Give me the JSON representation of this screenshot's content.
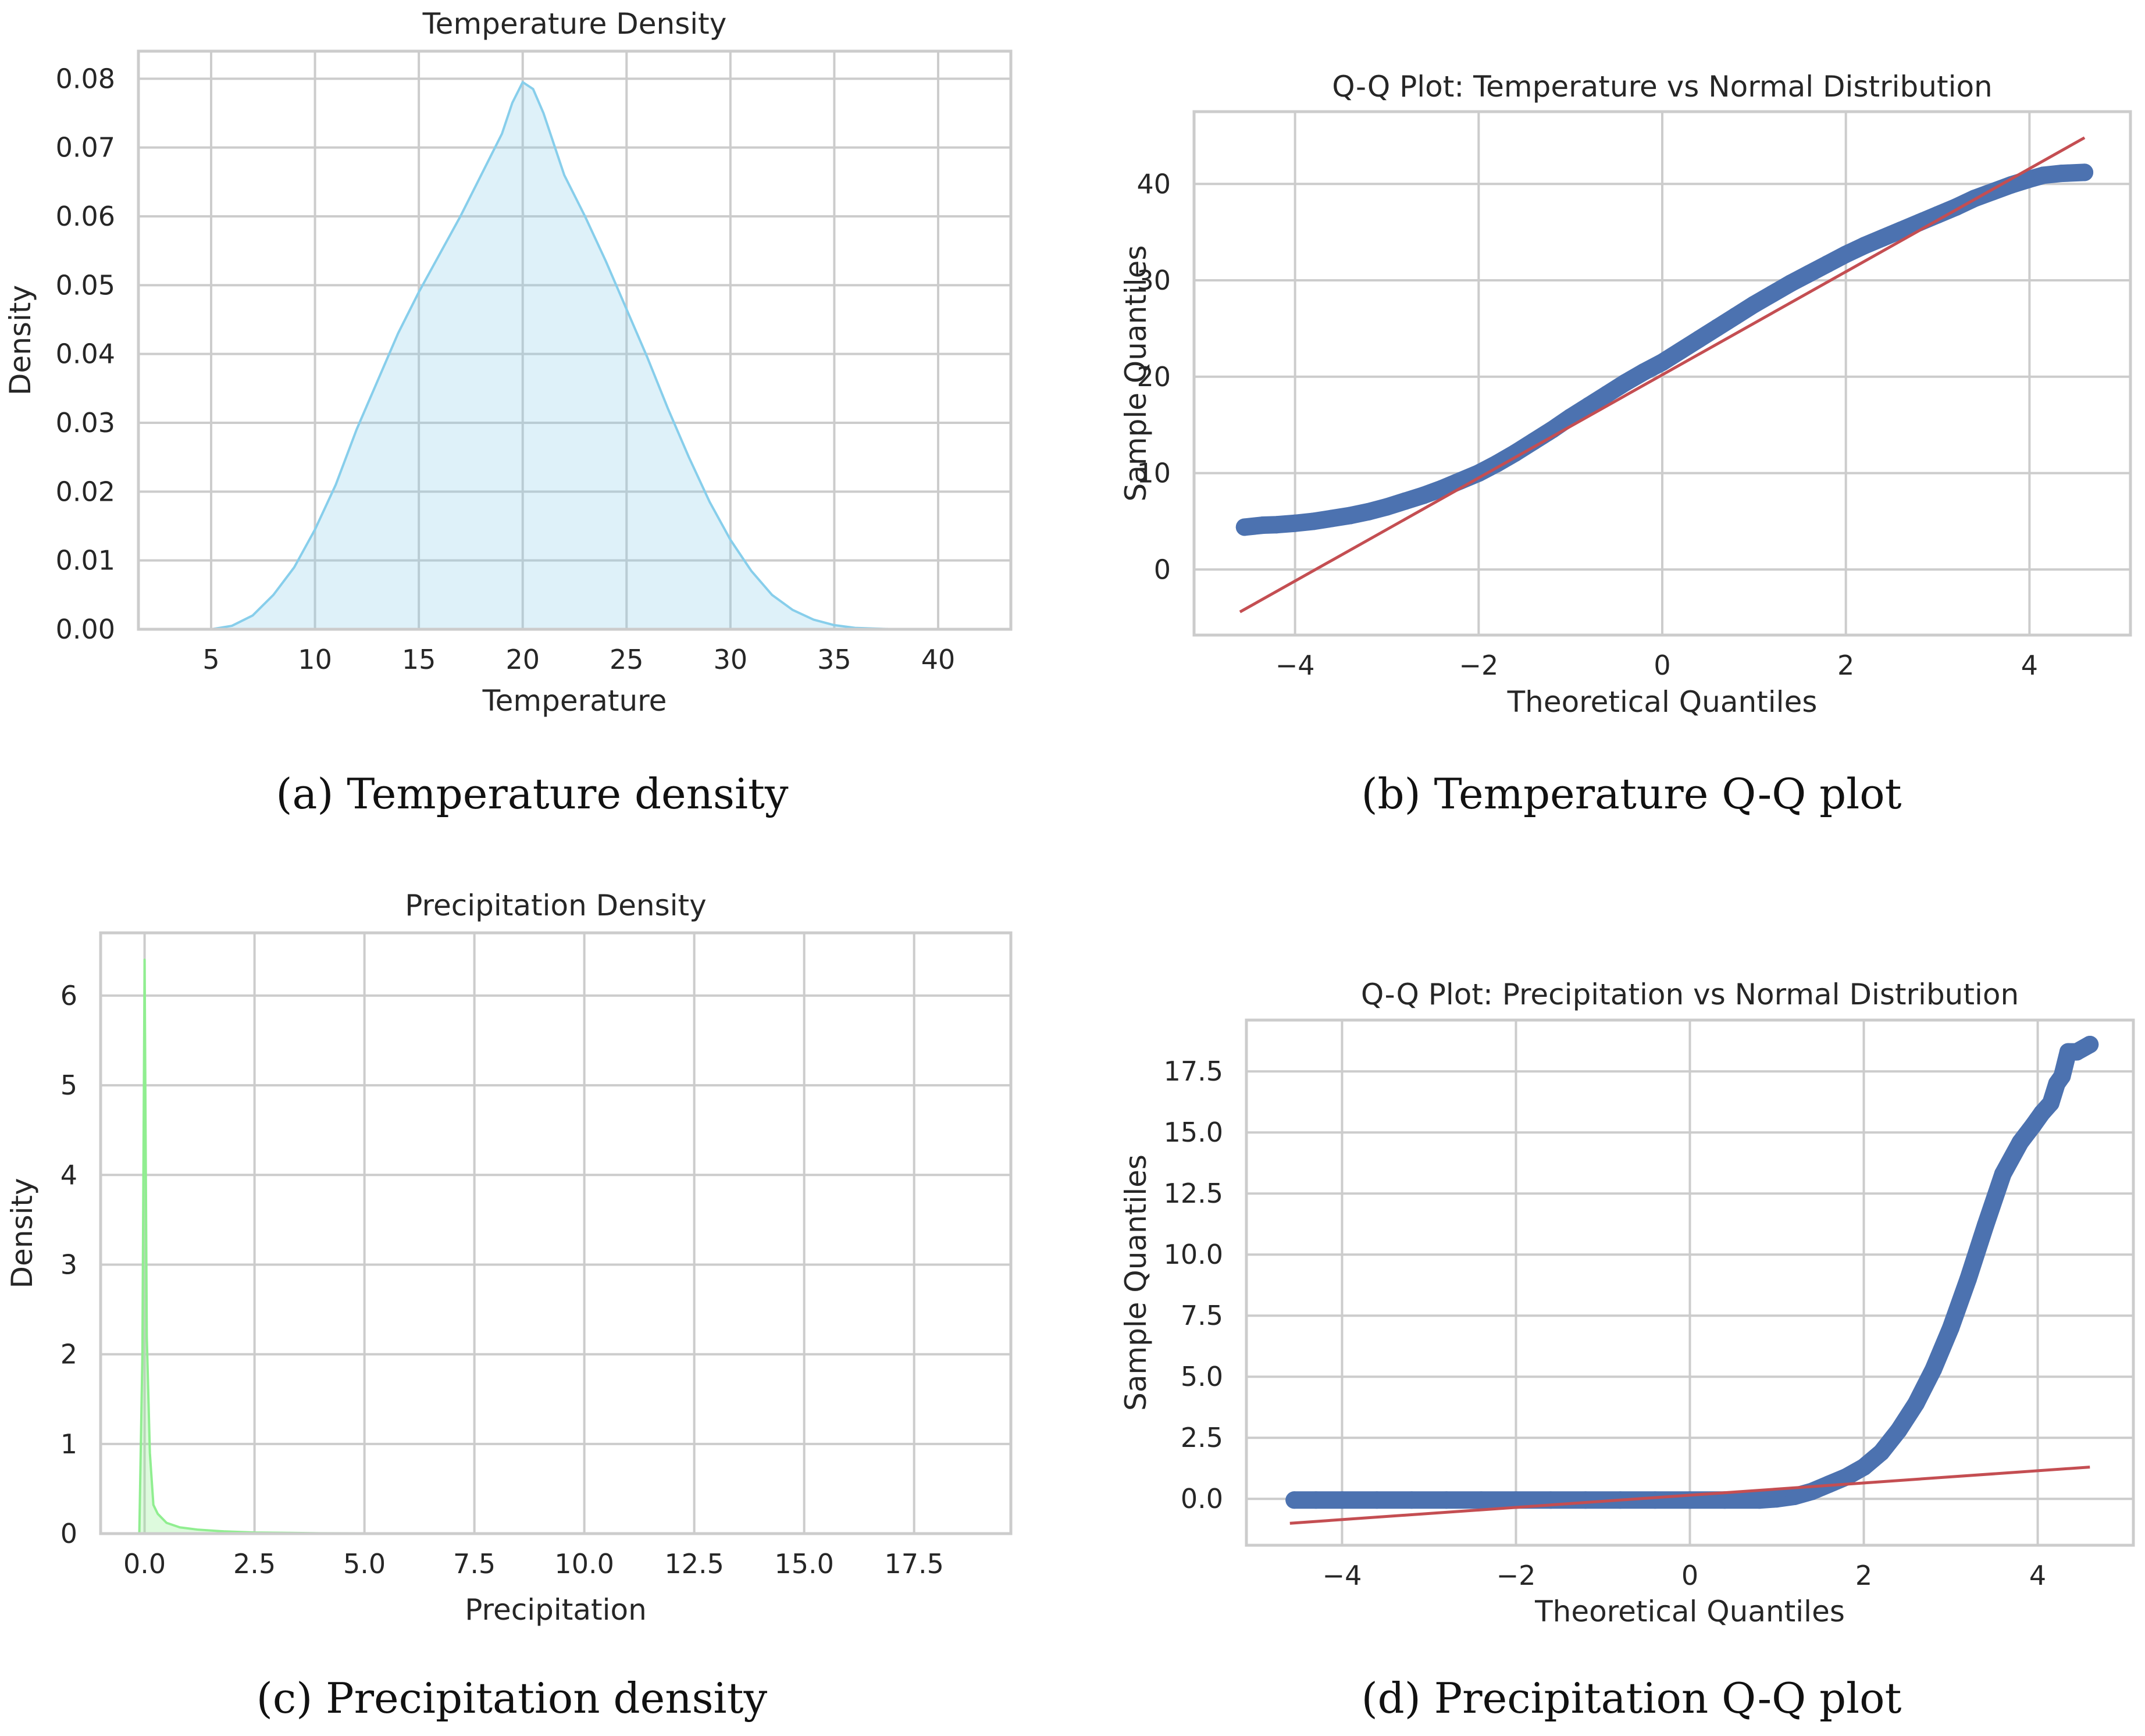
{
  "chart_data": [
    {
      "type": "area",
      "panel": "a",
      "title": "Temperature Density",
      "xlabel": "Temperature",
      "ylabel": "Density",
      "xlim": [
        1.5,
        43.5
      ],
      "ylim": [
        0,
        0.084
      ],
      "xticks": [
        5,
        10,
        15,
        20,
        25,
        30,
        35,
        40
      ],
      "yticks": [
        0.0,
        0.01,
        0.02,
        0.03,
        0.04,
        0.05,
        0.06,
        0.07,
        0.08
      ],
      "ytick_decimals": 2,
      "grid": true,
      "series": [
        {
          "name": "Temperature density",
          "color": "#87ceeb",
          "fill": "#87ceeb",
          "fill_opacity": 0.28,
          "x": [
            5,
            6,
            7,
            8,
            9,
            10,
            11,
            12,
            13,
            14,
            15,
            16,
            17,
            18,
            19,
            19.5,
            20,
            20.5,
            21,
            22,
            23,
            24,
            25,
            26,
            27,
            28,
            29,
            30,
            31,
            32,
            33,
            34,
            35,
            36,
            37,
            38,
            39,
            40
          ],
          "y": [
            0.0,
            0.0005,
            0.002,
            0.005,
            0.009,
            0.0145,
            0.021,
            0.029,
            0.036,
            0.043,
            0.049,
            0.0545,
            0.06,
            0.066,
            0.072,
            0.0765,
            0.0795,
            0.0785,
            0.075,
            0.066,
            0.06,
            0.0535,
            0.0465,
            0.0395,
            0.032,
            0.025,
            0.0185,
            0.013,
            0.0085,
            0.005,
            0.0028,
            0.0014,
            0.0006,
            0.0002,
            0.0001,
            0.0,
            0.0,
            0.0
          ]
        }
      ]
    },
    {
      "type": "scatter",
      "panel": "b",
      "title": "Q-Q Plot: Temperature vs Normal Distribution",
      "xlabel": "Theoretical Quantiles",
      "ylabel": "Sample Quantiles",
      "xlim": [
        -5.1,
        5.1
      ],
      "ylim": [
        -6.8,
        47.5
      ],
      "xticks": [
        -4,
        -2,
        0,
        2,
        4
      ],
      "yticks": [
        0,
        10,
        20,
        30,
        40
      ],
      "ytick_decimals": 0,
      "grid": true,
      "series": [
        {
          "name": "Sample quantiles",
          "kind": "points",
          "color": "#4c72b0",
          "x": [
            -4.55,
            -4.35,
            -4.2,
            -4.0,
            -3.8,
            -3.6,
            -3.4,
            -3.2,
            -3.0,
            -2.8,
            -2.6,
            -2.4,
            -2.2,
            -2.0,
            -1.8,
            -1.6,
            -1.4,
            -1.2,
            -1.0,
            -0.8,
            -0.6,
            -0.4,
            -0.2,
            0.0,
            0.2,
            0.4,
            0.6,
            0.8,
            1.0,
            1.2,
            1.4,
            1.6,
            1.8,
            2.0,
            2.2,
            2.4,
            2.6,
            2.8,
            3.0,
            3.2,
            3.4,
            3.6,
            3.8,
            4.0,
            4.15,
            4.35,
            4.6
          ],
          "y": [
            4.4,
            4.6,
            4.65,
            4.8,
            5.0,
            5.3,
            5.6,
            6.0,
            6.5,
            7.1,
            7.7,
            8.4,
            9.2,
            10.0,
            11.0,
            12.1,
            13.3,
            14.5,
            15.8,
            17.0,
            18.2,
            19.4,
            20.5,
            21.5,
            22.7,
            23.9,
            25.1,
            26.3,
            27.5,
            28.6,
            29.7,
            30.7,
            31.7,
            32.7,
            33.6,
            34.4,
            35.2,
            36.0,
            36.8,
            37.6,
            38.5,
            39.2,
            39.9,
            40.5,
            40.9,
            41.1,
            41.2
          ]
        },
        {
          "name": "Reference line",
          "kind": "line",
          "color": "#c44e52",
          "x": [
            -4.6,
            4.6
          ],
          "y": [
            -4.4,
            44.8
          ]
        }
      ]
    },
    {
      "type": "area",
      "panel": "c",
      "title": "Precipitation Density",
      "xlabel": "Precipitation",
      "ylabel": "Density",
      "xlim": [
        -1.0,
        19.7
      ],
      "ylim": [
        0,
        6.7
      ],
      "xticks": [
        0.0,
        2.5,
        5.0,
        7.5,
        10.0,
        12.5,
        15.0,
        17.5
      ],
      "xtick_decimals": 1,
      "yticks": [
        0,
        1,
        2,
        3,
        4,
        5,
        6
      ],
      "ytick_decimals": 0,
      "grid": true,
      "series": [
        {
          "name": "Precipitation density",
          "color": "#90ee90",
          "fill": "#90ee90",
          "fill_opacity": 0.3,
          "x": [
            -0.12,
            -0.05,
            0.0,
            0.05,
            0.12,
            0.2,
            0.3,
            0.5,
            0.8,
            1.2,
            1.8,
            2.5,
            4,
            6,
            8,
            10,
            12,
            14,
            16,
            18,
            18.6
          ],
          "y": [
            0.0,
            2.0,
            6.4,
            2.2,
            0.9,
            0.32,
            0.22,
            0.12,
            0.07,
            0.045,
            0.025,
            0.012,
            0.004,
            0.002,
            0.001,
            0.0006,
            0.0004,
            0.0003,
            0.0002,
            0.0001,
            0.0
          ]
        }
      ]
    },
    {
      "type": "scatter",
      "panel": "d",
      "title": "Q-Q Plot: Precipitation vs Normal Distribution",
      "xlabel": "Theoretical Quantiles",
      "ylabel": "Sample Quantiles",
      "xlim": [
        -5.1,
        5.1
      ],
      "ylim": [
        -1.9,
        19.6
      ],
      "xticks": [
        -4,
        -2,
        0,
        2,
        4
      ],
      "yticks": [
        0.0,
        2.5,
        5.0,
        7.5,
        10.0,
        12.5,
        15.0,
        17.5
      ],
      "ytick_decimals": 1,
      "grid": true,
      "series": [
        {
          "name": "Sample quantiles",
          "kind": "points",
          "color": "#4c72b0",
          "x": [
            -4.55,
            -4.3,
            -4.0,
            -3.6,
            -3.2,
            -2.8,
            -2.4,
            -2.0,
            -1.6,
            -1.2,
            -0.8,
            -0.4,
            0.0,
            0.4,
            0.8,
            1.0,
            1.2,
            1.4,
            1.6,
            1.8,
            2.0,
            2.2,
            2.4,
            2.6,
            2.8,
            3.0,
            3.2,
            3.4,
            3.6,
            3.8,
            3.95,
            4.05,
            4.15,
            4.22,
            4.28,
            4.35,
            4.45,
            4.6
          ],
          "y": [
            -0.05,
            -0.05,
            -0.05,
            -0.05,
            -0.05,
            -0.05,
            -0.05,
            -0.05,
            -0.05,
            -0.05,
            -0.05,
            -0.05,
            -0.05,
            -0.05,
            -0.05,
            0.0,
            0.1,
            0.3,
            0.6,
            0.9,
            1.3,
            1.9,
            2.8,
            3.9,
            5.3,
            7.0,
            9.0,
            11.2,
            13.3,
            14.6,
            15.3,
            15.8,
            16.2,
            17.0,
            17.3,
            18.3,
            18.3,
            18.6
          ]
        },
        {
          "name": "Reference line",
          "kind": "line",
          "color": "#c44e52",
          "x": [
            -4.6,
            4.6
          ],
          "y": [
            -1.0,
            1.3
          ]
        }
      ]
    }
  ],
  "captions": {
    "a": "(a) Temperature density",
    "b": "(b) Temperature Q-Q plot",
    "c": "(c) Precipitation density",
    "d": "(d) Precipitation Q-Q plot"
  }
}
